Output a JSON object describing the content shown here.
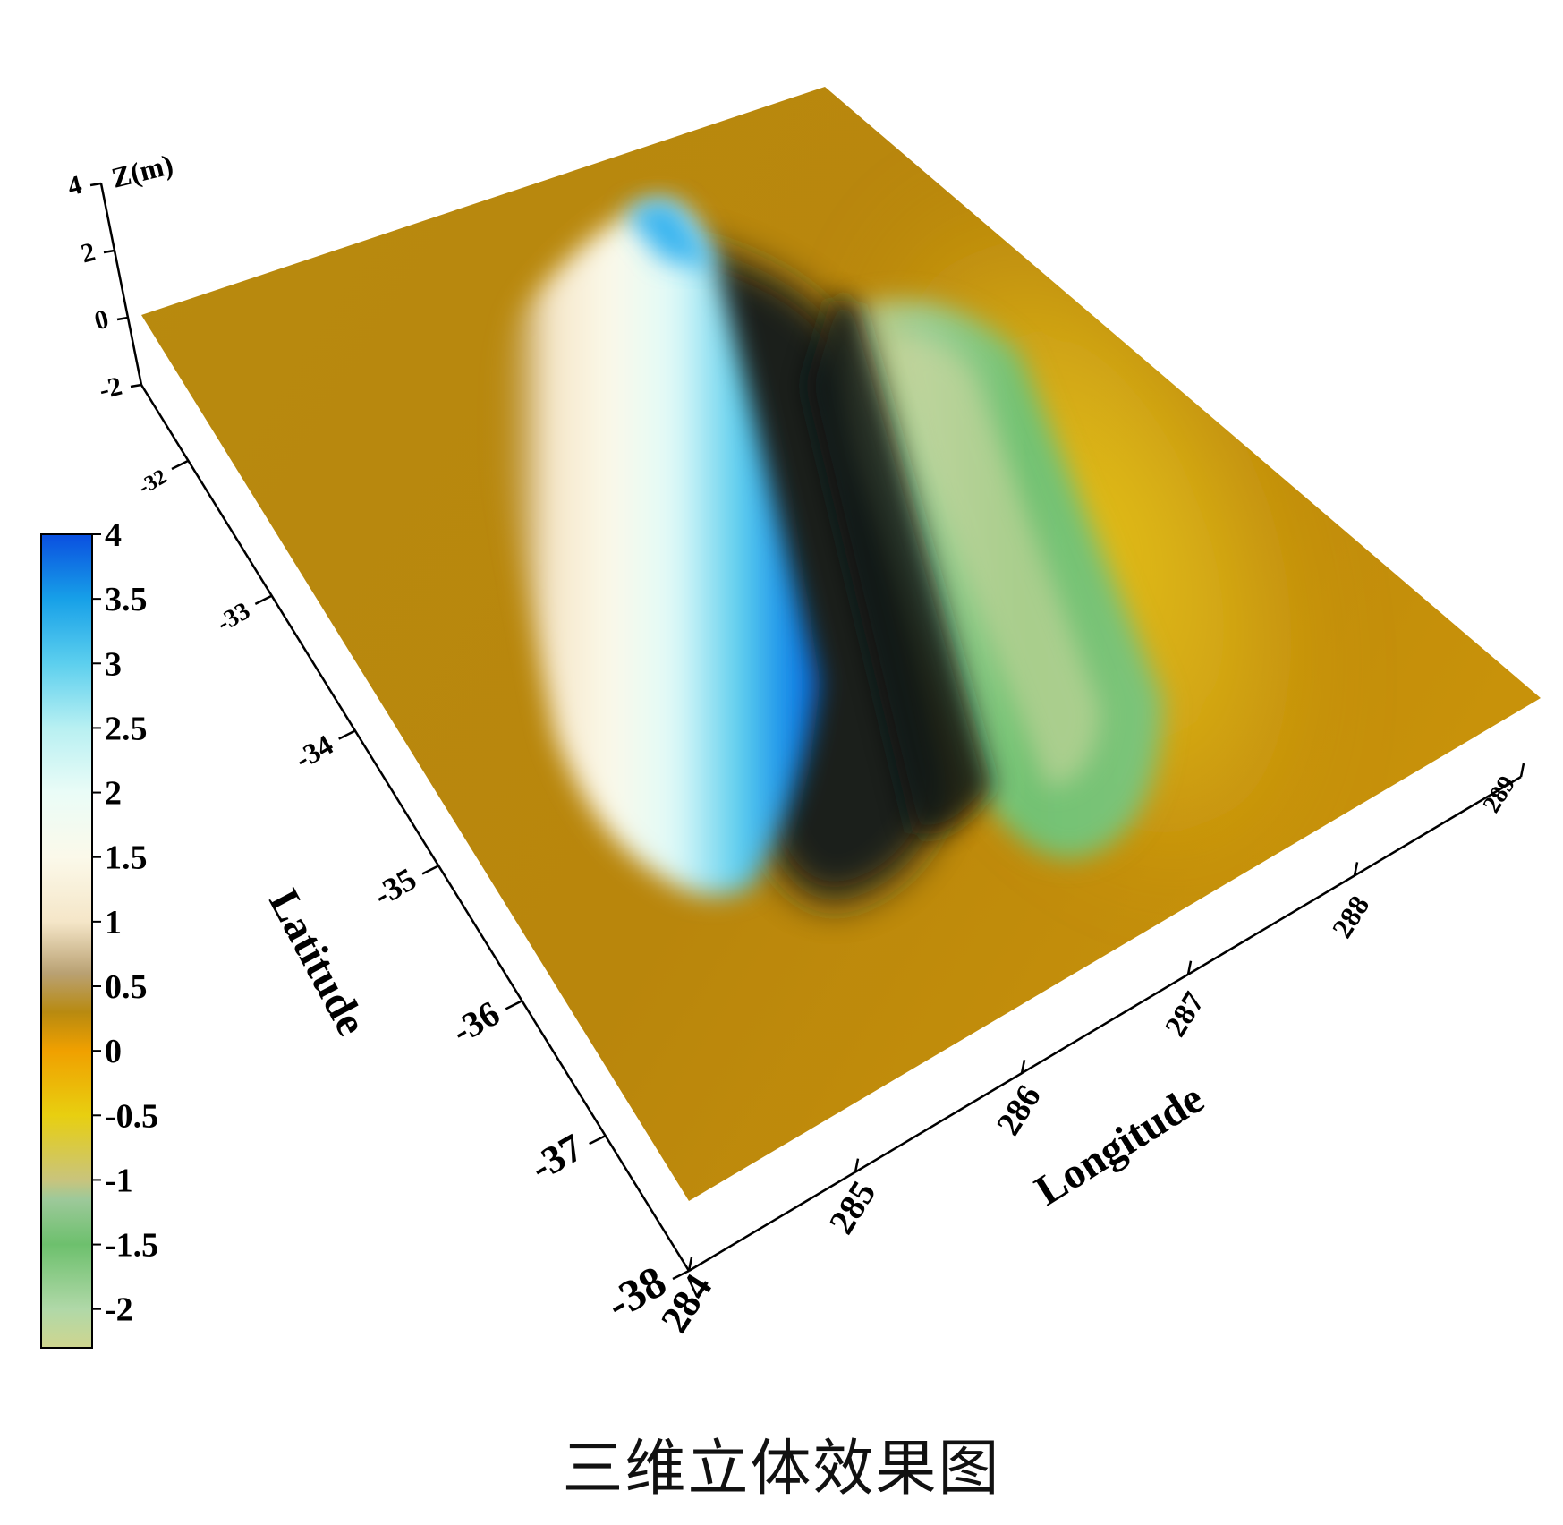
{
  "caption": "三维立体效果图",
  "chart_data": {
    "type": "surface3d",
    "zlabel": "Z(m)",
    "xlabel": "Longitude",
    "ylabel": "Latitude",
    "x_ticks": [
      284,
      285,
      286,
      287,
      288,
      289
    ],
    "x_tick_labels": [
      "284",
      "285",
      "286",
      "287",
      "288",
      "289"
    ],
    "y_ticks": [
      -38,
      -37,
      -36,
      -35,
      -34,
      -33,
      -32
    ],
    "y_tick_labels": [
      "-38",
      "-37",
      "-36",
      "-35",
      "-34",
      "-33",
      "-32"
    ],
    "z_ticks": [
      -2,
      0,
      2,
      4
    ],
    "z_tick_labels": [
      "-2",
      "0",
      "2",
      "4"
    ],
    "xlim": [
      284,
      289
    ],
    "ylim": [
      -38,
      -32
    ],
    "zlim": [
      -2,
      4
    ],
    "surface": {
      "description_peak": {
        "value": 3.6,
        "longitude": 285.5,
        "latitude": -34.0
      },
      "trough": {
        "value": -1.5,
        "longitude": 287.0,
        "latitude": -35.0
      }
    },
    "colorbar": {
      "ticks": [
        4,
        3.5,
        3,
        2.5,
        2,
        1.5,
        1,
        0.5,
        0,
        -0.5,
        -1,
        -1.5,
        -2
      ],
      "tick_labels": [
        "4",
        "3.5",
        "3",
        "2.5",
        "2",
        "1.5",
        "1",
        "0.5",
        "0",
        "-0.5",
        "-1",
        "-1.5",
        "-2"
      ],
      "range": [
        -2.3,
        4
      ],
      "stops": [
        {
          "v": -2.3,
          "color": "#cfd68f"
        },
        {
          "v": -2.0,
          "color": "#b0d8a8"
        },
        {
          "v": -1.5,
          "color": "#6dc06d"
        },
        {
          "v": -1.15,
          "color": "#9dc99a"
        },
        {
          "v": -1.0,
          "color": "#c9c47c"
        },
        {
          "v": -0.5,
          "color": "#e8cf10"
        },
        {
          "v": 0.0,
          "color": "#f0a000"
        },
        {
          "v": 0.3,
          "color": "#b88a10"
        },
        {
          "v": 0.6,
          "color": "#b9a173"
        },
        {
          "v": 1.0,
          "color": "#f5e6c8"
        },
        {
          "v": 1.5,
          "color": "#fbf9ea"
        },
        {
          "v": 2.0,
          "color": "#eafcf7"
        },
        {
          "v": 2.5,
          "color": "#b8f0f2"
        },
        {
          "v": 3.0,
          "color": "#5ccfee"
        },
        {
          "v": 3.5,
          "color": "#17a0e8"
        },
        {
          "v": 4.0,
          "color": "#0a4fe0"
        }
      ]
    }
  }
}
